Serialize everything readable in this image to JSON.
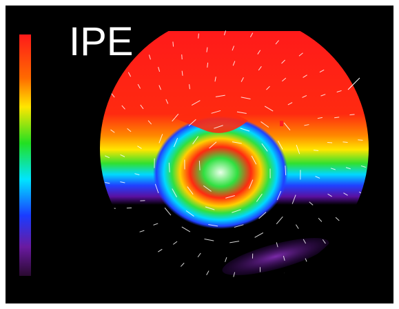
{
  "title": "IPE"
}
